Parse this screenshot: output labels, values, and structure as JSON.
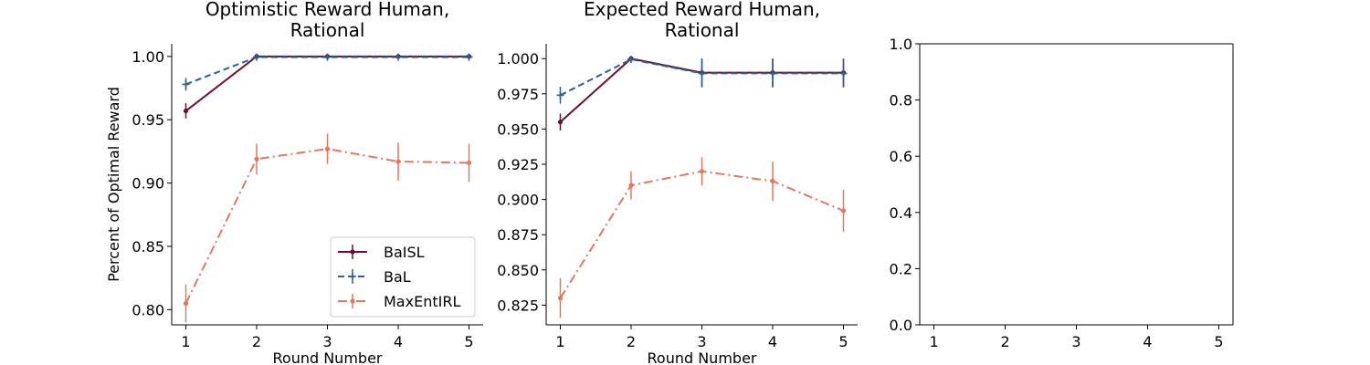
{
  "chart_data": [
    {
      "type": "line",
      "title": [
        "Optimistic Reward Human,",
        "Rational"
      ],
      "xlabel": "Round Number",
      "ylabel": "Percent of Optimal Reward",
      "x": [
        1,
        2,
        3,
        4,
        5
      ],
      "xlim": [
        0.8,
        5.2
      ],
      "ylim": [
        0.788,
        1.01
      ],
      "xticks": [
        1,
        2,
        3,
        4,
        5
      ],
      "yticks": [
        0.8,
        0.85,
        0.9,
        0.95,
        1.0
      ],
      "ytick_labels": [
        "0.80",
        "0.85",
        "0.90",
        "0.95",
        "1.00"
      ],
      "legend_position": "lower-right",
      "series": [
        {
          "name": "BaISL",
          "color": "#6d1028",
          "linestyle": "solid",
          "marker": "circle",
          "values": [
            0.957,
            1.0,
            1.0,
            1.0,
            1.0
          ],
          "errors": [
            0.006,
            0.0005,
            0.0005,
            0.0005,
            0.0005
          ]
        },
        {
          "name": "BaL",
          "color": "#2e5f99",
          "linestyle": "dashed",
          "marker": "plus",
          "values": [
            0.978,
            0.9995,
            0.9995,
            0.9995,
            0.9995
          ],
          "errors": [
            0.005,
            0.0005,
            0.0005,
            0.0005,
            0.0005
          ]
        },
        {
          "name": "MaxEntIRL",
          "color": "#e07860",
          "linestyle": "dashdot",
          "marker": "circle",
          "values": [
            0.805,
            0.919,
            0.927,
            0.917,
            0.916
          ],
          "errors": [
            0.015,
            0.012,
            0.012,
            0.015,
            0.015
          ]
        }
      ]
    },
    {
      "type": "line",
      "title": [
        "Expected Reward Human,",
        "Rational"
      ],
      "xlabel": "Round Number",
      "ylabel": "",
      "x": [
        1,
        2,
        3,
        4,
        5
      ],
      "xlim": [
        0.8,
        5.2
      ],
      "ylim": [
        0.811,
        1.0105
      ],
      "xticks": [
        1,
        2,
        3,
        4,
        5
      ],
      "yticks": [
        0.825,
        0.85,
        0.875,
        0.9,
        0.925,
        0.95,
        0.975,
        1.0
      ],
      "ytick_labels": [
        "0.825",
        "0.850",
        "0.875",
        "0.900",
        "0.925",
        "0.950",
        "0.975",
        "1.000"
      ],
      "series": [
        {
          "name": "BaISL",
          "color": "#6d1028",
          "linestyle": "solid",
          "marker": "circle",
          "values": [
            0.955,
            1.0,
            0.99,
            0.99,
            0.99
          ],
          "errors": [
            0.006,
            0.0005,
            0.01,
            0.01,
            0.01
          ]
        },
        {
          "name": "BaL",
          "color": "#2e5f99",
          "linestyle": "dashed",
          "marker": "plus",
          "values": [
            0.974,
            0.9995,
            0.9895,
            0.9895,
            0.9895
          ],
          "errors": [
            0.006,
            0.0005,
            0.01,
            0.01,
            0.01
          ]
        },
        {
          "name": "MaxEntIRL",
          "color": "#e07860",
          "linestyle": "dashdot",
          "marker": "circle",
          "values": [
            0.83,
            0.91,
            0.92,
            0.913,
            0.892
          ],
          "errors": [
            0.014,
            0.01,
            0.01,
            0.014,
            0.015
          ]
        }
      ]
    },
    {
      "type": "line",
      "title": "",
      "xlabel": "",
      "ylabel": "",
      "x": [
        1,
        2,
        3,
        4,
        5
      ],
      "xlim": [
        0.8,
        5.2
      ],
      "ylim": [
        0.0,
        1.0
      ],
      "xticks": [
        1,
        2,
        3,
        4,
        5
      ],
      "yticks": [
        0.0,
        0.2,
        0.4,
        0.6,
        0.8,
        1.0
      ],
      "ytick_labels": [
        "0.0",
        "0.2",
        "0.4",
        "0.6",
        "0.8",
        "1.0"
      ],
      "series": []
    }
  ]
}
